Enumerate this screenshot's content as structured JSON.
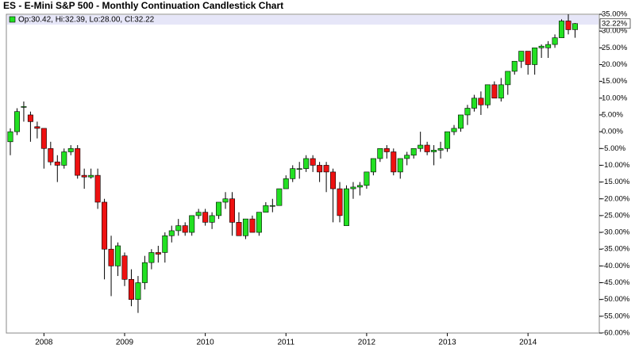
{
  "chart_data": {
    "type": "candlestick",
    "title": "ES - E-Mini S&P 500 - Monthly Continuation Candlestick Chart",
    "legend_text": "Op:30.42, Hi:32.39, Lo:28.00, Cl:32.22",
    "last_value_label": "32.22%",
    "categories": [
      null,
      null,
      null,
      null,
      null,
      "2008",
      null,
      null,
      null,
      null,
      null,
      null,
      null,
      null,
      null,
      null,
      null,
      "2009",
      null,
      null,
      null,
      null,
      null,
      null,
      null,
      null,
      null,
      null,
      null,
      "2010",
      null,
      null,
      null,
      null,
      null,
      null,
      null,
      null,
      null,
      null,
      null,
      "2011",
      null,
      null,
      null,
      null,
      null,
      null,
      null,
      null,
      null,
      null,
      null,
      "2012",
      null,
      null,
      null,
      null,
      null,
      null,
      null,
      null,
      null,
      null,
      null,
      "2013",
      null,
      null,
      null,
      null,
      null,
      null,
      null,
      null,
      null,
      null,
      null,
      "2014",
      null,
      null,
      null,
      null,
      null,
      null,
      null
    ],
    "open": [
      -3,
      0,
      7.5,
      5,
      1.5,
      1,
      -5,
      -9,
      -10,
      -6,
      -5,
      -13,
      -13.5,
      -13,
      -21,
      -35,
      -40,
      -37,
      -44,
      -50,
      -45,
      -39,
      -36,
      -36,
      -31,
      -29.5,
      -28,
      -30,
      -25,
      -24,
      -27,
      -25,
      -21,
      -20,
      -27,
      -31,
      -26,
      -30,
      -24,
      -22,
      -22,
      -17,
      -14,
      -11,
      -11,
      -8,
      -10,
      -10,
      -12,
      -17,
      -28,
      -17,
      -16.5,
      -16,
      -12,
      -8,
      -5,
      -6,
      -12,
      -8,
      -7,
      -5,
      -4,
      -6,
      -5.5,
      -5,
      0,
      1,
      5,
      7,
      10,
      8,
      14,
      10,
      14,
      18,
      21,
      24,
      20,
      25,
      25,
      26,
      28,
      33,
      30.42
    ],
    "high": [
      1,
      7,
      9,
      6,
      3,
      1,
      -3,
      -7,
      -5,
      -4,
      -4,
      -11,
      -11,
      -11,
      -20,
      -31,
      -33,
      -36,
      -41,
      -43,
      -37,
      -35,
      -34,
      -30,
      -28,
      -26,
      -27,
      -25,
      -23,
      -23,
      -24,
      -21,
      -18,
      -18,
      -24,
      -26,
      -25,
      -24,
      -21,
      -20,
      -17,
      -13,
      -10,
      -9,
      -7,
      -7,
      -9,
      -9,
      -11,
      -15,
      -16,
      -15,
      -15,
      -12,
      -8,
      -5,
      -4,
      -5,
      -8,
      -6,
      -5,
      0,
      -3,
      -4,
      -3,
      0,
      2,
      5,
      8,
      11,
      12,
      14,
      15,
      16,
      18,
      21,
      24,
      24,
      25,
      26,
      27,
      29,
      33.5,
      35,
      32.39
    ],
    "low": [
      -7,
      -1,
      3,
      -3,
      -2,
      -11,
      -10,
      -15,
      -11,
      -7,
      -14,
      -17,
      -14,
      -23,
      -44,
      -49,
      -43,
      -46,
      -52,
      -54,
      -47,
      -41,
      -39,
      -39,
      -33,
      -31,
      -31,
      -31,
      -26,
      -28,
      -29,
      -26,
      -23,
      -31,
      -31,
      -32,
      -30,
      -31,
      -24,
      -24,
      -22,
      -17,
      -15,
      -14,
      -12,
      -12,
      -15,
      -18,
      -27,
      -27,
      -28,
      -20,
      -19,
      -17,
      -13,
      -9,
      -8,
      -13,
      -14,
      -10,
      -8,
      -6,
      -7,
      -10,
      -8,
      -6,
      -1,
      0,
      2,
      6,
      5,
      7,
      10,
      9,
      11,
      17,
      19,
      17,
      17,
      22,
      22,
      25,
      28,
      29,
      28.0
    ],
    "close": [
      0,
      6,
      7.5,
      3,
      1,
      -5,
      -9,
      -10,
      -6,
      -5,
      -13,
      -13.5,
      -13,
      -21,
      -35,
      -40,
      -34,
      -44,
      -50,
      -45,
      -39,
      -36,
      -36.5,
      -31,
      -29.5,
      -28,
      -30,
      -25,
      -24,
      -27,
      -25,
      -21,
      -20,
      -27,
      -31,
      -26,
      -30,
      -24,
      -22,
      -22,
      -17,
      -14,
      -11,
      -11,
      -8,
      -10,
      -12,
      -12,
      -17,
      -25,
      -17,
      -16.5,
      -16,
      -12,
      -8,
      -5,
      -6,
      -12,
      -8,
      -7,
      -5,
      -4,
      -6,
      -5.5,
      -5,
      0,
      1,
      5,
      7,
      10,
      8,
      14,
      10,
      14,
      18,
      21,
      24,
      20,
      25,
      25.5,
      26,
      28,
      33,
      30.4,
      32.22
    ],
    "up_color": "#22e022",
    "down_color": "#ee1111",
    "ylim": [
      -60,
      35
    ],
    "yticks": [
      {
        "value": 35,
        "label": "35.00%"
      },
      {
        "value": 30,
        "label": "30.00%"
      },
      {
        "value": 25,
        "label": "25.00%"
      },
      {
        "value": 20,
        "label": "20.00%"
      },
      {
        "value": 15,
        "label": "15.00%"
      },
      {
        "value": 10,
        "label": "10.00%"
      },
      {
        "value": 5,
        "label": "5.00%"
      },
      {
        "value": 0,
        "label": "0.00%"
      },
      {
        "value": -5,
        "label": "-5.00%"
      },
      {
        "value": -10,
        "label": "-10.00%"
      },
      {
        "value": -15,
        "label": "-15.00%"
      },
      {
        "value": -20,
        "label": "-20.00%"
      },
      {
        "value": -25,
        "label": "-25.00%"
      },
      {
        "value": -30,
        "label": "-30.00%"
      },
      {
        "value": -35,
        "label": "-35.00%"
      },
      {
        "value": -40,
        "label": "-40.00%"
      },
      {
        "value": -45,
        "label": "-45.00%"
      },
      {
        "value": -50,
        "label": "-50.00%"
      },
      {
        "value": -55,
        "label": "-55.00%"
      },
      {
        "value": -60,
        "label": "-60.00%"
      }
    ]
  }
}
